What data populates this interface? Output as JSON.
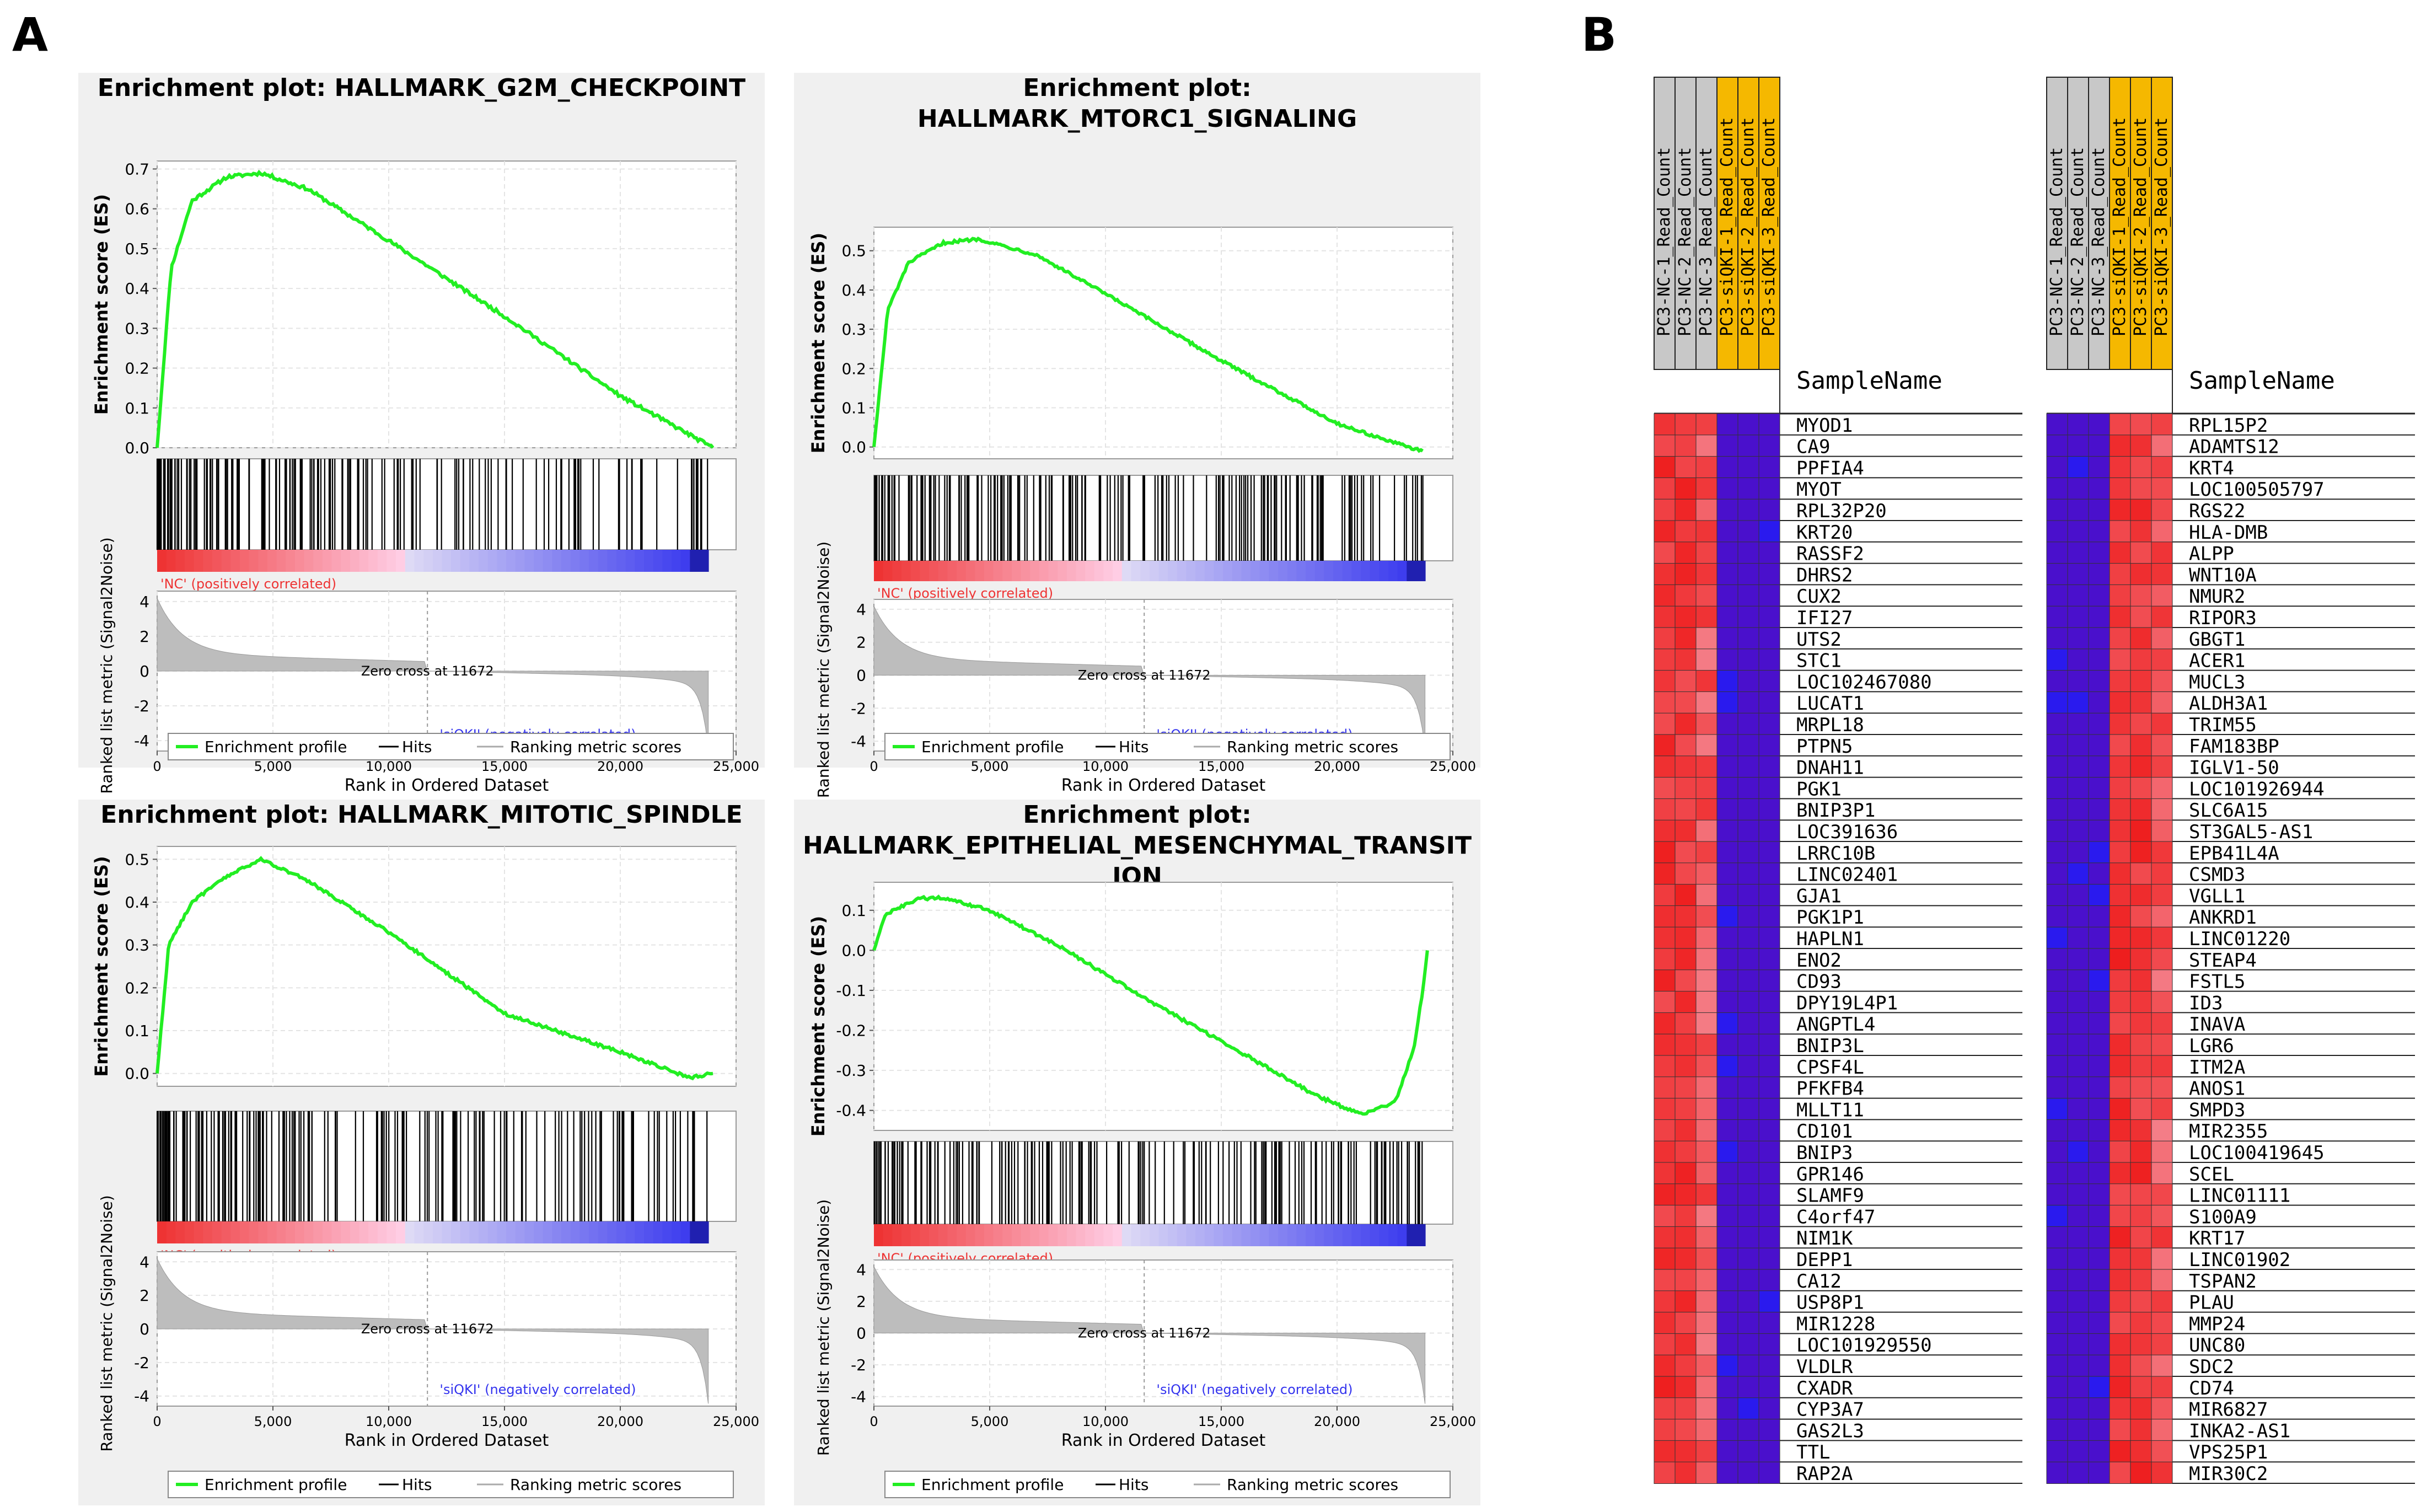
{
  "panels": {
    "a": "A",
    "b": "B"
  },
  "gsea": {
    "x_ticks": [
      0,
      5000,
      10000,
      15000,
      20000,
      25000
    ],
    "x_tick_labels": [
      "0",
      "5,000",
      "10,000",
      "15,000",
      "20,000",
      "25,000"
    ],
    "x_label": "Rank in Ordered Dataset",
    "es_label": "Enrichment score (ES)",
    "metric_label": "Ranked list metric (Signal2Noise)",
    "metric_ticks": [
      4,
      2,
      0,
      -2,
      -4
    ],
    "pos_label": "'NC' (positively correlated)",
    "neg_label": "'siQKI' (negatively correlated)",
    "zero_cross": "Zero cross at 11672",
    "legend": [
      "Enrichment profile",
      "Hits",
      "Ranking metric scores"
    ],
    "colors": {
      "profile": "#22ee22",
      "hits": "#000000",
      "metric": "#bdbdbd",
      "pos": "#ee3333",
      "neg": "#3333ee"
    }
  },
  "chart_data": [
    {
      "type": "line",
      "title": [
        "Enrichment plot: HALLMARK_G2M_CHECKPOINT"
      ],
      "xlabel": "Rank in Ordered Dataset",
      "ylabel": "Enrichment score (ES)",
      "xlim": [
        0,
        25000
      ],
      "ylim": [
        0,
        0.72
      ],
      "yticks": [
        0,
        0.1,
        0.2,
        0.3,
        0.4,
        0.5,
        0.6,
        0.7
      ],
      "ytick_labels": [
        "0.0",
        "0.1",
        "0.2",
        "0.3",
        "0.4",
        "0.5",
        "0.6",
        "0.7"
      ],
      "x": [
        0,
        600,
        1500,
        3000,
        4500,
        6500,
        10000,
        15000,
        20000,
        24000
      ],
      "y": [
        0,
        0.45,
        0.62,
        0.68,
        0.69,
        0.65,
        0.52,
        0.33,
        0.13,
        0
      ]
    },
    {
      "type": "line",
      "title": [
        "Enrichment plot:",
        "HALLMARK_MTORC1_SIGNALING"
      ],
      "xlabel": "Rank in Ordered Dataset",
      "ylabel": "Enrichment score (ES)",
      "xlim": [
        0,
        25000
      ],
      "ylim": [
        -0.03,
        0.56
      ],
      "yticks": [
        0,
        0.1,
        0.2,
        0.3,
        0.4,
        0.5
      ],
      "ytick_labels": [
        "0.0",
        "0.1",
        "0.2",
        "0.3",
        "0.4",
        "0.5"
      ],
      "x": [
        0,
        600,
        1500,
        3000,
        4500,
        7000,
        10000,
        15000,
        20000,
        22500,
        23700
      ],
      "y": [
        0,
        0.35,
        0.47,
        0.52,
        0.53,
        0.49,
        0.39,
        0.22,
        0.06,
        0.01,
        -0.01
      ]
    },
    {
      "type": "line",
      "title": [
        "Enrichment plot: HALLMARK_MITOTIC_SPINDLE"
      ],
      "xlabel": "Rank in Ordered Dataset",
      "ylabel": "Enrichment score (ES)",
      "xlim": [
        0,
        25000
      ],
      "ylim": [
        -0.03,
        0.53
      ],
      "yticks": [
        0,
        0.1,
        0.2,
        0.3,
        0.4,
        0.5
      ],
      "ytick_labels": [
        "0.0",
        "0.1",
        "0.2",
        "0.3",
        "0.4",
        "0.5"
      ],
      "x": [
        0,
        500,
        1500,
        3000,
        4500,
        6500,
        10000,
        15000,
        20000,
        23000,
        24000
      ],
      "y": [
        0,
        0.3,
        0.4,
        0.46,
        0.5,
        0.45,
        0.33,
        0.14,
        0.05,
        -0.01,
        0
      ]
    },
    {
      "type": "line",
      "title": [
        "Enrichment plot:",
        "HALLMARK_EPITHELIAL_MESENCHYMAL_TRANSIT",
        "ION"
      ],
      "xlabel": "Rank in Ordered Dataset",
      "ylabel": "Enrichment score (ES)",
      "xlim": [
        0,
        25000
      ],
      "ylim": [
        -0.45,
        0.17
      ],
      "yticks": [
        0.1,
        0,
        -0.1,
        -0.2,
        -0.3,
        -0.4
      ],
      "ytick_labels": [
        "0.1",
        "0.0",
        "-0.1",
        "-0.2",
        "-0.3",
        "-0.4"
      ],
      "x": [
        0,
        500,
        2000,
        3000,
        5000,
        8000,
        12000,
        16000,
        19000,
        21000,
        22500,
        23300,
        23700,
        23900
      ],
      "y": [
        0,
        0.09,
        0.13,
        0.13,
        0.1,
        0.01,
        -0.13,
        -0.26,
        -0.36,
        -0.41,
        -0.38,
        -0.25,
        -0.1,
        0
      ]
    }
  ],
  "heatmap": {
    "header": "SampleName",
    "samples": [
      "PC3-NC-1_Read_Count",
      "PC3-NC-2_Read_Count",
      "PC3-NC-3_Read_Count",
      "PC3-siQKI-1_Read_Count",
      "PC3-siQKI-2_Read_Count",
      "PC3-siQKI-3_Read_Count"
    ],
    "sample_label_colors": [
      "#c8c8c8",
      "#c8c8c8",
      "#c8c8c8",
      "#f5b800",
      "#f5b800",
      "#f5b800"
    ],
    "left_genes": [
      "MYOD1",
      "CA9",
      "PPFIA4",
      "MYOT",
      "RPL32P20",
      "KRT20",
      "RASSF2",
      "DHRS2",
      "CUX2",
      "IFI27",
      "UTS2",
      "STC1",
      "LOC102467080",
      "LUCAT1",
      "MRPL18",
      "PTPN5",
      "DNAH11",
      "PGK1",
      "BNIP3P1",
      "LOC391636",
      "LRRC10B",
      "LINC02401",
      "GJA1",
      "PGK1P1",
      "HAPLN1",
      "ENO2",
      "CD93",
      "DPY19L4P1",
      "ANGPTL4",
      "BNIP3L",
      "CPSF4L",
      "PFKFB4",
      "MLLT11",
      "CD101",
      "BNIP3",
      "GPR146",
      "SLAMF9",
      "C4orf47",
      "NIM1K",
      "DEPP1",
      "CA12",
      "USP8P1",
      "MIR1228",
      "LOC101929550",
      "VLDLR",
      "CXADR",
      "CYP3A7",
      "GAS2L3",
      "TTL",
      "RAP2A"
    ],
    "right_genes": [
      "RPL15P2",
      "ADAMTS12",
      "KRT4",
      "LOC100505797",
      "RGS22",
      "HLA-DMB",
      "ALPP",
      "WNT10A",
      "NMUR2",
      "RIPOR3",
      "GBGT1",
      "ACER1",
      "MUCL3",
      "ALDH3A1",
      "TRIM55",
      "FAM183BP",
      "IGLV1-50",
      "LOC101926944",
      "SLC6A15",
      "ST3GAL5-AS1",
      "EPB41L4A",
      "CSMD3",
      "VGLL1",
      "ANKRD1",
      "LINC01220",
      "STEAP4",
      "FSTL5",
      "ID3",
      "INAVA",
      "LGR6",
      "ITM2A",
      "ANOS1",
      "SMPD3",
      "MIR2355",
      "LOC100419645",
      "SCEL",
      "LINC01111",
      "S100A9",
      "KRT17",
      "LINC01902",
      "TSPAN2",
      "PLAU",
      "MMP24",
      "UNC80",
      "SDC2",
      "CD74",
      "MIR6827",
      "INKA2-AS1",
      "VPS25P1",
      "MIR30C2"
    ],
    "colors": {
      "high": "#ee2222",
      "low": "#4a10cc"
    }
  }
}
